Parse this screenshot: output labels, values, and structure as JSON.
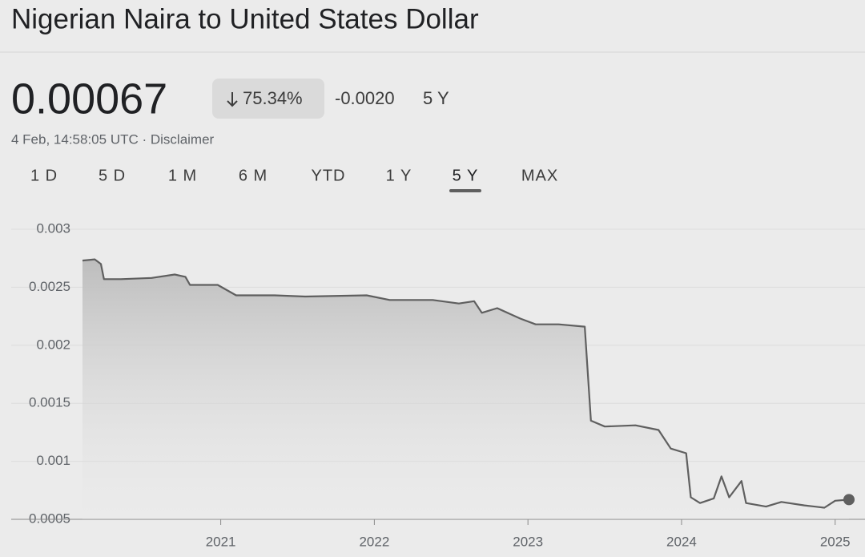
{
  "header": {
    "title": "Nigerian Naira to United States Dollar",
    "price": "0.00067",
    "change_percent": "75.34%",
    "change": "-0.0020",
    "period": "5 Y",
    "timestamp": "4 Feb, 14:58:05 UTC · Disclaimer"
  },
  "tabs": {
    "items": [
      "1 D",
      "5 D",
      "1 M",
      "6 M",
      "YTD",
      "1 Y",
      "5 Y",
      "MAX"
    ],
    "selected": 6
  },
  "chart_data": {
    "type": "line",
    "color": "#5f5f5f",
    "grid": true,
    "x": [
      2020.1,
      2020.18,
      2020.22,
      2020.24,
      2020.35,
      2020.55,
      2020.7,
      2020.77,
      2020.8,
      2020.98,
      2021.1,
      2021.35,
      2021.55,
      2021.95,
      2022.1,
      2022.38,
      2022.55,
      2022.65,
      2022.7,
      2022.8,
      2022.95,
      2023.05,
      2023.2,
      2023.37,
      2023.41,
      2023.5,
      2023.7,
      2023.85,
      2023.93,
      2024.03,
      2024.06,
      2024.12,
      2024.21,
      2024.26,
      2024.31,
      2024.39,
      2024.42,
      2024.55,
      2024.65,
      2024.8,
      2024.93,
      2025.0,
      2025.09
    ],
    "values": [
      0.00273,
      0.00274,
      0.0027,
      0.00257,
      0.00257,
      0.00258,
      0.00261,
      0.00259,
      0.00252,
      0.00252,
      0.00243,
      0.00243,
      0.00242,
      0.00243,
      0.00239,
      0.00239,
      0.00236,
      0.00238,
      0.00228,
      0.00232,
      0.00223,
      0.00218,
      0.00218,
      0.00216,
      0.00135,
      0.0013,
      0.00131,
      0.00127,
      0.00111,
      0.00107,
      0.00069,
      0.00064,
      0.00068,
      0.00087,
      0.00069,
      0.00083,
      0.00064,
      0.00061,
      0.00065,
      0.00062,
      0.0006,
      0.00066,
      0.00067
    ],
    "xlim": [
      2020.1,
      2025.09
    ],
    "xticks": [
      2021,
      2022,
      2023,
      2024,
      2025
    ],
    "ylim": [
      0.0005,
      0.003
    ],
    "yticks": [
      0.0005,
      0.001,
      0.0015,
      0.002,
      0.0025,
      0.003
    ]
  }
}
